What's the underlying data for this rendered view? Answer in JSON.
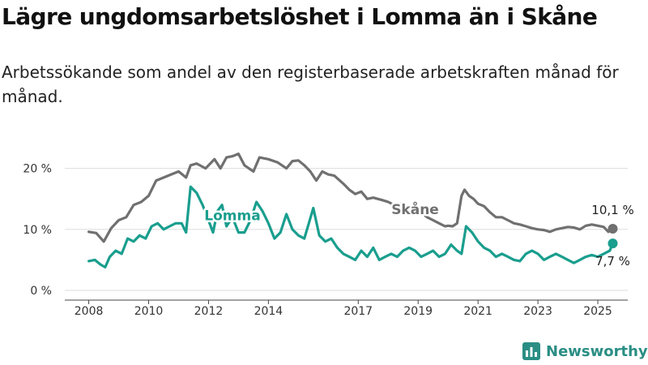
{
  "title": "Lägre ungdomsarbetslöshet i Lomma än i Skåne",
  "subtitle": "Arbetssökande som andel av den registerbaserade arbetskraften månad för månad.",
  "brand": {
    "name": "Newsworthy",
    "icon": "newsworthy-logo-icon",
    "color": "#2a8e84"
  },
  "chart_data": {
    "type": "line",
    "title": "Lägre ungdomsarbetslöshet i Lomma än i Skåne",
    "subtitle": "Arbetssökande som andel av den registerbaserade arbetskraften månad för månad.",
    "x_ticks": [
      "2008",
      "2010",
      "2012",
      "2014",
      "2017",
      "2019",
      "2021",
      "2023",
      "2025"
    ],
    "x_tick_years": [
      2008,
      2010,
      2012,
      2014,
      2017,
      2019,
      2021,
      2023,
      2025
    ],
    "y_ticks": [
      "0 %",
      "10 %",
      "20 %"
    ],
    "y_tick_values": [
      0,
      10,
      20
    ],
    "xlim": [
      2007.2,
      2026.0
    ],
    "ylim": [
      0,
      25
    ],
    "grid": "horizontal",
    "legend": "inline labels",
    "series": [
      {
        "name": "Skåne",
        "color": "#707070",
        "label_at": [
          2018.9,
          12.5
        ],
        "end_label": "10,1 %",
        "end_value": 10.1,
        "points": [
          [
            2008.0,
            9.6
          ],
          [
            2008.25,
            9.4
          ],
          [
            2008.5,
            8.0
          ],
          [
            2008.75,
            10.2
          ],
          [
            2009.0,
            11.5
          ],
          [
            2009.25,
            12.0
          ],
          [
            2009.5,
            14.0
          ],
          [
            2009.75,
            14.5
          ],
          [
            2010.0,
            15.5
          ],
          [
            2010.25,
            18.0
          ],
          [
            2010.5,
            18.5
          ],
          [
            2010.75,
            19.0
          ],
          [
            2011.0,
            19.5
          ],
          [
            2011.25,
            18.5
          ],
          [
            2011.4,
            20.5
          ],
          [
            2011.6,
            20.8
          ],
          [
            2011.9,
            20.0
          ],
          [
            2012.2,
            21.5
          ],
          [
            2012.4,
            20.0
          ],
          [
            2012.6,
            21.8
          ],
          [
            2012.8,
            22.0
          ],
          [
            2013.0,
            22.4
          ],
          [
            2013.2,
            20.5
          ],
          [
            2013.5,
            19.5
          ],
          [
            2013.7,
            21.8
          ],
          [
            2014.0,
            21.5
          ],
          [
            2014.3,
            21.0
          ],
          [
            2014.6,
            20.0
          ],
          [
            2014.8,
            21.2
          ],
          [
            2015.0,
            21.3
          ],
          [
            2015.2,
            20.5
          ],
          [
            2015.4,
            19.5
          ],
          [
            2015.6,
            18.0
          ],
          [
            2015.8,
            19.5
          ],
          [
            2016.0,
            19.0
          ],
          [
            2016.2,
            18.8
          ],
          [
            2016.5,
            17.5
          ],
          [
            2016.7,
            16.5
          ],
          [
            2016.9,
            15.8
          ],
          [
            2017.1,
            16.2
          ],
          [
            2017.3,
            15.0
          ],
          [
            2017.5,
            15.2
          ],
          [
            2017.8,
            14.8
          ],
          [
            2018.0,
            14.5
          ],
          [
            2018.2,
            14.0
          ],
          [
            2018.4,
            14.2
          ],
          [
            2018.7,
            13.5
          ],
          [
            2018.9,
            12.5
          ],
          [
            2019.1,
            12.8
          ],
          [
            2019.3,
            12.0
          ],
          [
            2019.5,
            11.5
          ],
          [
            2019.7,
            11.0
          ],
          [
            2019.9,
            10.5
          ],
          [
            2020.0,
            10.6
          ],
          [
            2020.15,
            10.5
          ],
          [
            2020.3,
            11.0
          ],
          [
            2020.45,
            15.5
          ],
          [
            2020.55,
            16.5
          ],
          [
            2020.7,
            15.5
          ],
          [
            2020.85,
            15.0
          ],
          [
            2021.0,
            14.2
          ],
          [
            2021.2,
            13.8
          ],
          [
            2021.4,
            12.8
          ],
          [
            2021.6,
            12.0
          ],
          [
            2021.8,
            12.0
          ],
          [
            2022.0,
            11.5
          ],
          [
            2022.2,
            11.0
          ],
          [
            2022.4,
            10.8
          ],
          [
            2022.6,
            10.5
          ],
          [
            2022.8,
            10.2
          ],
          [
            2023.0,
            10.0
          ],
          [
            2023.2,
            9.9
          ],
          [
            2023.4,
            9.6
          ],
          [
            2023.6,
            10.0
          ],
          [
            2023.8,
            10.2
          ],
          [
            2024.0,
            10.4
          ],
          [
            2024.2,
            10.3
          ],
          [
            2024.4,
            10.0
          ],
          [
            2024.6,
            10.6
          ],
          [
            2024.8,
            10.8
          ],
          [
            2025.0,
            10.6
          ],
          [
            2025.2,
            10.4
          ],
          [
            2025.35,
            9.6
          ],
          [
            2025.5,
            10.1
          ]
        ]
      },
      {
        "name": "Lomma",
        "color": "#1a9e8e",
        "label_at": [
          2012.8,
          11.5
        ],
        "end_label": "7,7 %",
        "end_value": 7.7,
        "points": [
          [
            2008.0,
            4.8
          ],
          [
            2008.2,
            5.0
          ],
          [
            2008.4,
            4.2
          ],
          [
            2008.55,
            3.8
          ],
          [
            2008.7,
            5.5
          ],
          [
            2008.9,
            6.5
          ],
          [
            2009.1,
            6.0
          ],
          [
            2009.3,
            8.5
          ],
          [
            2009.5,
            8.0
          ],
          [
            2009.7,
            9.0
          ],
          [
            2009.9,
            8.5
          ],
          [
            2010.1,
            10.5
          ],
          [
            2010.3,
            11.0
          ],
          [
            2010.5,
            10.0
          ],
          [
            2010.7,
            10.5
          ],
          [
            2010.9,
            11.0
          ],
          [
            2011.1,
            11.0
          ],
          [
            2011.25,
            9.5
          ],
          [
            2011.4,
            17.0
          ],
          [
            2011.6,
            16.0
          ],
          [
            2011.8,
            14.0
          ],
          [
            2012.0,
            11.5
          ],
          [
            2012.15,
            9.5
          ],
          [
            2012.3,
            13.0
          ],
          [
            2012.45,
            14.0
          ],
          [
            2012.6,
            10.5
          ],
          [
            2012.8,
            12.0
          ],
          [
            2013.0,
            9.5
          ],
          [
            2013.2,
            9.5
          ],
          [
            2013.4,
            11.5
          ],
          [
            2013.6,
            14.5
          ],
          [
            2013.8,
            13.0
          ],
          [
            2014.0,
            11.0
          ],
          [
            2014.2,
            8.5
          ],
          [
            2014.4,
            9.5
          ],
          [
            2014.6,
            12.5
          ],
          [
            2014.8,
            10.0
          ],
          [
            2015.0,
            9.0
          ],
          [
            2015.2,
            8.5
          ],
          [
            2015.35,
            11.0
          ],
          [
            2015.5,
            13.5
          ],
          [
            2015.7,
            9.0
          ],
          [
            2015.9,
            8.0
          ],
          [
            2016.1,
            8.5
          ],
          [
            2016.3,
            7.0
          ],
          [
            2016.5,
            6.0
          ],
          [
            2016.7,
            5.5
          ],
          [
            2016.9,
            5.0
          ],
          [
            2017.1,
            6.5
          ],
          [
            2017.3,
            5.5
          ],
          [
            2017.5,
            7.0
          ],
          [
            2017.7,
            5.0
          ],
          [
            2017.9,
            5.5
          ],
          [
            2018.1,
            6.0
          ],
          [
            2018.3,
            5.5
          ],
          [
            2018.5,
            6.5
          ],
          [
            2018.7,
            7.0
          ],
          [
            2018.9,
            6.5
          ],
          [
            2019.1,
            5.5
          ],
          [
            2019.3,
            6.0
          ],
          [
            2019.5,
            6.5
          ],
          [
            2019.7,
            5.5
          ],
          [
            2019.9,
            6.0
          ],
          [
            2020.1,
            7.5
          ],
          [
            2020.3,
            6.5
          ],
          [
            2020.45,
            6.0
          ],
          [
            2020.6,
            10.5
          ],
          [
            2020.8,
            9.5
          ],
          [
            2021.0,
            8.0
          ],
          [
            2021.2,
            7.0
          ],
          [
            2021.4,
            6.5
          ],
          [
            2021.6,
            5.5
          ],
          [
            2021.8,
            6.0
          ],
          [
            2022.0,
            5.5
          ],
          [
            2022.2,
            5.0
          ],
          [
            2022.4,
            4.8
          ],
          [
            2022.6,
            6.0
          ],
          [
            2022.8,
            6.5
          ],
          [
            2023.0,
            6.0
          ],
          [
            2023.2,
            5.0
          ],
          [
            2023.4,
            5.5
          ],
          [
            2023.6,
            6.0
          ],
          [
            2023.8,
            5.5
          ],
          [
            2024.0,
            5.0
          ],
          [
            2024.2,
            4.5
          ],
          [
            2024.4,
            5.0
          ],
          [
            2024.6,
            5.5
          ],
          [
            2024.8,
            5.8
          ],
          [
            2025.0,
            5.5
          ],
          [
            2025.2,
            6.0
          ],
          [
            2025.4,
            6.5
          ],
          [
            2025.5,
            7.7
          ]
        ]
      }
    ]
  }
}
